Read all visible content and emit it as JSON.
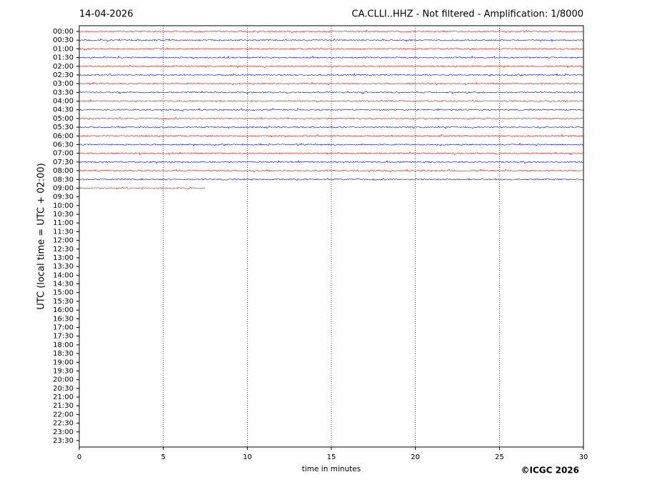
{
  "chart_data": {
    "type": "helicorder",
    "date": "14-04-2026",
    "title": "CA.CLLI..HHZ - Not filtered - Amplification: 1/8000",
    "y_label": "UTC (local time = UTC + 02:00)",
    "x_label": "time in minutes",
    "copyright": "©ICGC 2026",
    "categories": [
      "00:00",
      "00:30",
      "01:00",
      "01:30",
      "02:00",
      "02:30",
      "03:00",
      "03:30",
      "04:00",
      "04:30",
      "05:00",
      "05:30",
      "06:00",
      "06:30",
      "07:00",
      "07:30",
      "08:00",
      "08:30",
      "09:00",
      "09:30",
      "10:00",
      "10:30",
      "11:00",
      "11:30",
      "12:00",
      "12:30",
      "13:00",
      "13:30",
      "14:00",
      "14:30",
      "15:00",
      "15:30",
      "16:00",
      "16:30",
      "17:00",
      "17:30",
      "18:00",
      "18:30",
      "19:00",
      "19:30",
      "20:00",
      "20:30",
      "21:00",
      "21:30",
      "22:00",
      "22:30",
      "23:00",
      "23:30"
    ],
    "values": [
      30,
      30,
      30,
      30,
      30,
      30,
      30,
      30,
      30,
      30,
      30,
      30,
      30,
      30,
      30,
      30,
      30,
      30,
      7.5,
      null,
      null,
      null,
      null,
      null,
      null,
      null,
      null,
      null,
      null,
      null,
      null,
      null,
      null,
      null,
      null,
      null,
      null,
      null,
      null,
      null,
      null,
      null,
      null,
      null,
      null,
      null,
      null,
      null
    ],
    "colors": [
      "#ff0000",
      "#0000ff"
    ],
    "xlim": [
      0,
      30
    ],
    "xticks": [
      0,
      5,
      10,
      15,
      20,
      25,
      30
    ],
    "grid": true
  }
}
